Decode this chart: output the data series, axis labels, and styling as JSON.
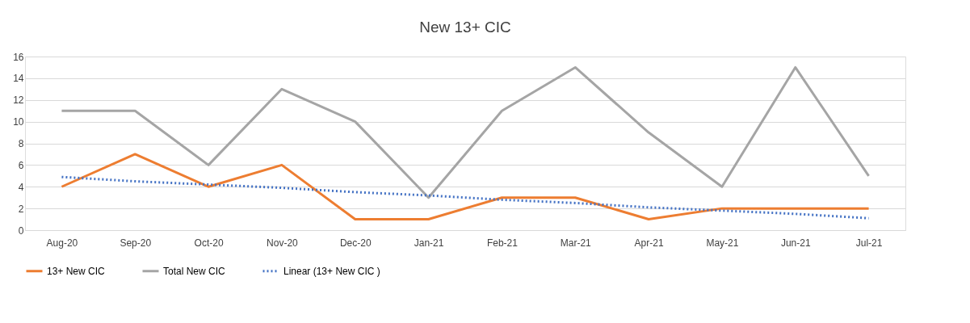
{
  "chart_data": {
    "type": "line",
    "title": "New 13+ CIC",
    "categories": [
      "Aug-20",
      "Sep-20",
      "Oct-20",
      "Nov-20",
      "Dec-20",
      "Jan-21",
      "Feb-21",
      "Mar-21",
      "Apr-21",
      "May-21",
      "Jun-21",
      "Jul-21"
    ],
    "series": [
      {
        "name": "13+ New CIC",
        "color": "#ed7d31",
        "line_style": "solid",
        "values": [
          4,
          7,
          4,
          6,
          1,
          1,
          3,
          3,
          1,
          2,
          2,
          2
        ]
      },
      {
        "name": "Total New CIC",
        "color": "#a5a5a5",
        "line_style": "solid",
        "values": [
          11,
          11,
          6,
          13,
          10,
          3,
          11,
          15,
          9,
          4,
          15,
          5
        ]
      },
      {
        "name": "Linear (13+ New CIC )",
        "color": "#4472c4",
        "line_style": "dotted",
        "values": [
          4.9,
          4.5,
          4.2,
          3.9,
          3.5,
          3.2,
          2.8,
          2.5,
          2.1,
          1.8,
          1.5,
          1.1
        ]
      }
    ],
    "ylim": [
      0,
      16
    ],
    "yticks": [
      0,
      2,
      4,
      6,
      8,
      10,
      12,
      14,
      16
    ],
    "grid": "y",
    "legend": "bottom",
    "marker": "none"
  }
}
